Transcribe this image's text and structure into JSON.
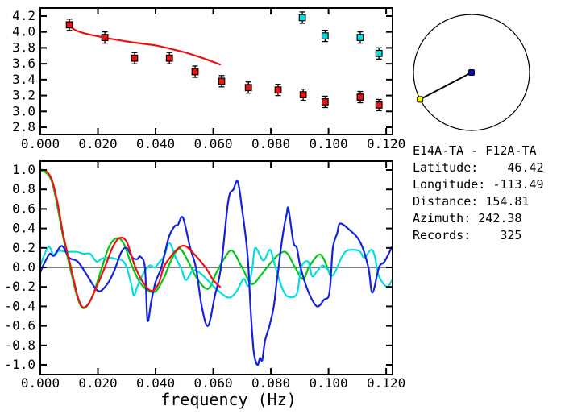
{
  "colors": {
    "red": "#ee1111",
    "green": "#00c814",
    "blue": "#1522dd",
    "cyan": "#00dede",
    "marker_red": "#ee1111",
    "marker_cyan": "#00e0e0",
    "center_dot": "#0011bb",
    "station_dot": "#ffff00",
    "axis": "#000000"
  },
  "station_info": {
    "title": "E14A-TA - F12A-TA",
    "lines": [
      "Latitude:    46.42",
      "Longitude: -113.49",
      "Distance: 154.81",
      "Azimuth: 242.38",
      "Records:    325"
    ]
  },
  "azimuth_circle": {
    "azimuth_deg": 242.38
  },
  "chart_data": [
    {
      "id": "dispersion-plot",
      "type": "scatter",
      "title": "",
      "xlabel": "",
      "ylabel": "",
      "xlim": [
        0,
        0.1222
      ],
      "ylim": [
        2.709,
        4.301
      ],
      "xtick_values": [
        0.0,
        0.02,
        0.04,
        0.06,
        0.08,
        0.1,
        0.12
      ],
      "xtick_labels": [
        "0.000",
        "0.020",
        "0.040",
        "0.060",
        "0.080",
        "0.100",
        "0.120"
      ],
      "ytick_values": [
        2.8,
        3.0,
        3.2,
        3.4,
        3.6,
        3.8,
        4.0,
        4.2
      ],
      "ytick_labels": [
        "2.8",
        "3.0",
        "3.2",
        "3.4",
        "3.6",
        "3.8",
        "4.0",
        "4.2"
      ],
      "grid": false,
      "series": [
        {
          "name": "reference-dispersion-curve",
          "kind": "line",
          "color_key": "red",
          "x": [
            0.0095,
            0.011,
            0.013,
            0.016,
            0.02,
            0.025,
            0.03,
            0.035,
            0.04,
            0.045,
            0.05,
            0.054,
            0.058,
            0.0624
          ],
          "y": [
            4.1,
            4.05,
            4.01,
            3.975,
            3.945,
            3.91,
            3.88,
            3.855,
            3.83,
            3.79,
            3.745,
            3.7,
            3.65,
            3.59
          ]
        },
        {
          "name": "dispersion-picks-red",
          "kind": "scatter",
          "color_key": "marker_red",
          "x": [
            0.0101,
            0.0224,
            0.0327,
            0.0448,
            0.0537,
            0.0629,
            0.0722,
            0.0825,
            0.0912,
            0.0988,
            0.111,
            0.1175
          ],
          "y": [
            4.09,
            3.93,
            3.67,
            3.67,
            3.5,
            3.38,
            3.3,
            3.27,
            3.21,
            3.12,
            3.18,
            3.08
          ]
        },
        {
          "name": "dispersion-picks-cyan",
          "kind": "scatter",
          "color_key": "marker_cyan",
          "x": [
            0.0909,
            0.0988,
            0.111,
            0.1175
          ],
          "y": [
            4.18,
            3.95,
            3.93,
            3.73
          ]
        }
      ]
    },
    {
      "id": "correlation-plot",
      "type": "line",
      "title": "",
      "xlabel": "frequency (Hz)",
      "ylabel": "",
      "xlim": [
        0,
        0.1222
      ],
      "ylim": [
        -1.099,
        1.091
      ],
      "xtick_values": [
        0.0,
        0.02,
        0.04,
        0.06,
        0.08,
        0.1,
        0.12
      ],
      "xtick_labels": [
        "0.000",
        "0.020",
        "0.040",
        "0.060",
        "0.080",
        "0.100",
        "0.120"
      ],
      "ytick_values": [
        -1.0,
        -0.8,
        -0.6,
        -0.4,
        -0.2,
        0.0,
        0.2,
        0.4,
        0.6,
        0.8,
        1.0
      ],
      "ytick_labels": [
        "-1.0",
        "-0.8",
        "-0.6",
        "-0.4",
        "-0.2",
        "0.0",
        "0.2",
        "0.4",
        "0.6",
        "0.8",
        "1.0"
      ],
      "grid": false,
      "zero_line": true,
      "series": [
        {
          "name": "correlation-green",
          "kind": "line",
          "color_key": "green",
          "x": [
            0.0,
            0.004,
            0.008,
            0.0103,
            0.013,
            0.0152,
            0.018,
            0.0214,
            0.024,
            0.0266,
            0.029,
            0.032,
            0.0355,
            0.0397,
            0.043,
            0.0455,
            0.0484,
            0.0515,
            0.0545,
            0.0582,
            0.061,
            0.064,
            0.0666,
            0.07,
            0.0733,
            0.0765,
            0.08,
            0.083,
            0.0855,
            0.0884,
            0.0912,
            0.0935,
            0.0973,
            0.1007
          ],
          "y": [
            1.0,
            0.88,
            0.3,
            0.0,
            -0.32,
            -0.42,
            -0.3,
            0.0,
            0.22,
            0.3,
            0.24,
            0.0,
            -0.19,
            -0.25,
            -0.1,
            0.08,
            0.19,
            0.05,
            -0.12,
            -0.22,
            -0.06,
            0.1,
            0.17,
            0.0,
            -0.17,
            -0.08,
            0.05,
            0.14,
            0.15,
            0.0,
            -0.12,
            0.02,
            0.13,
            -0.09
          ]
        },
        {
          "name": "correlation-cyan",
          "kind": "line",
          "color_key": "cyan",
          "x": [
            0.0,
            0.0028,
            0.0047,
            0.0064,
            0.009,
            0.0126,
            0.015,
            0.0173,
            0.0195,
            0.0213,
            0.0238,
            0.0266,
            0.0285,
            0.03,
            0.0316,
            0.0325,
            0.0336,
            0.036,
            0.038,
            0.0397,
            0.0412,
            0.043,
            0.0448,
            0.047,
            0.049,
            0.0505,
            0.053,
            0.0555,
            0.058,
            0.061,
            0.0652,
            0.068,
            0.0705,
            0.0722,
            0.0736,
            0.0746,
            0.0774,
            0.0797,
            0.0816,
            0.084,
            0.086,
            0.089,
            0.0905,
            0.0929,
            0.0943,
            0.096,
            0.098,
            0.1,
            0.1016,
            0.1045,
            0.1063,
            0.109,
            0.111,
            0.1124,
            0.1147,
            0.116,
            0.1175,
            0.1203,
            0.1222
          ],
          "y": [
            0.02,
            0.21,
            0.12,
            0.17,
            0.16,
            0.16,
            0.14,
            0.14,
            0.06,
            0.09,
            0.1,
            0.085,
            0.07,
            0.0,
            -0.18,
            -0.29,
            -0.2,
            -0.05,
            0.02,
            0.0,
            0.05,
            0.12,
            0.25,
            0.1,
            -0.02,
            -0.13,
            -0.03,
            -0.06,
            -0.13,
            -0.22,
            -0.31,
            -0.25,
            -0.12,
            -0.19,
            0.0,
            0.2,
            0.07,
            0.18,
            0.0,
            -0.22,
            -0.3,
            -0.27,
            0.0,
            0.06,
            -0.09,
            -0.04,
            0.02,
            -0.03,
            -0.08,
            0.1,
            0.17,
            0.18,
            0.16,
            0.1,
            0.18,
            0.12,
            -0.09,
            -0.2,
            -0.12
          ]
        },
        {
          "name": "correlation-blue",
          "kind": "line",
          "color_key": "blue",
          "x": [
            0.0,
            0.0015,
            0.0033,
            0.0047,
            0.0075,
            0.01,
            0.013,
            0.016,
            0.02,
            0.023,
            0.0256,
            0.028,
            0.0299,
            0.032,
            0.0336,
            0.0347,
            0.0363,
            0.0372,
            0.0385,
            0.04,
            0.042,
            0.0445,
            0.0465,
            0.0478,
            0.0495,
            0.052,
            0.054,
            0.056,
            0.0582,
            0.0605,
            0.0627,
            0.0652,
            0.067,
            0.0685,
            0.07,
            0.0715,
            0.0722,
            0.073,
            0.074,
            0.0748,
            0.0755,
            0.0762,
            0.077,
            0.078,
            0.0795,
            0.081,
            0.082,
            0.0827,
            0.0835,
            0.0845,
            0.0855,
            0.0861,
            0.0878,
            0.089,
            0.0903,
            0.093,
            0.096,
            0.0985,
            0.1,
            0.1007,
            0.1015,
            0.103,
            0.104,
            0.1071,
            0.111,
            0.1138,
            0.1152,
            0.1175,
            0.1194,
            0.1222
          ],
          "y": [
            -0.05,
            0.05,
            0.14,
            0.12,
            0.22,
            0.1,
            0.06,
            -0.07,
            -0.24,
            -0.18,
            -0.04,
            0.15,
            0.2,
            0.1,
            0.085,
            0.11,
            0.0,
            -0.54,
            -0.35,
            -0.15,
            0.0,
            0.3,
            0.42,
            0.44,
            0.51,
            0.2,
            0.0,
            -0.4,
            -0.6,
            -0.3,
            0.0,
            0.68,
            0.8,
            0.88,
            0.6,
            0.25,
            0.0,
            -0.45,
            -0.85,
            -0.97,
            -1.0,
            -0.93,
            -0.95,
            -0.75,
            -0.6,
            -0.4,
            -0.15,
            0.0,
            0.2,
            0.4,
            0.55,
            0.6,
            0.26,
            0.2,
            0.0,
            -0.25,
            -0.4,
            -0.33,
            -0.3,
            -0.15,
            0.2,
            0.35,
            0.45,
            0.39,
            0.26,
            0.0,
            -0.26,
            0.0,
            0.06,
            0.22
          ]
        },
        {
          "name": "correlation-red",
          "kind": "line",
          "color_key": "red",
          "x": [
            0.0,
            0.002,
            0.004,
            0.006,
            0.008,
            0.0106,
            0.013,
            0.0148,
            0.017,
            0.0195,
            0.0224,
            0.025,
            0.0274,
            0.03,
            0.033,
            0.036,
            0.0386,
            0.041,
            0.0428,
            0.045,
            0.048,
            0.0503,
            0.053,
            0.0573,
            0.06,
            0.0624
          ],
          "y": [
            1.0,
            0.99,
            0.9,
            0.66,
            0.33,
            0.0,
            -0.3,
            -0.41,
            -0.36,
            -0.2,
            0.0,
            0.2,
            0.3,
            0.26,
            0.0,
            -0.17,
            -0.24,
            -0.17,
            0.0,
            0.1,
            0.2,
            0.22,
            0.15,
            0.0,
            -0.13,
            -0.2
          ]
        }
      ]
    }
  ]
}
